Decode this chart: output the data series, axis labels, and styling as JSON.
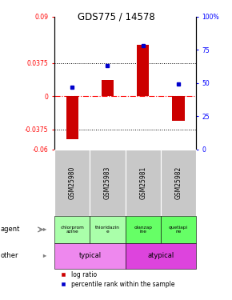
{
  "title": "GDS775 / 14578",
  "samples": [
    "GSM25980",
    "GSM25983",
    "GSM25981",
    "GSM25982"
  ],
  "log_ratios": [
    -0.048,
    0.018,
    0.058,
    -0.028
  ],
  "percentile_ranks": [
    47,
    63,
    78,
    49
  ],
  "ylim_left": [
    -0.06,
    0.09
  ],
  "yticks_left": [
    -0.06,
    -0.0375,
    0,
    0.0375,
    0.09
  ],
  "ytick_labels_left": [
    "-0.06",
    "-0.0375",
    "0",
    "0.0375",
    "0.09"
  ],
  "ylim_right": [
    0,
    100
  ],
  "yticks_right": [
    0,
    25,
    50,
    75,
    100
  ],
  "ytick_labels_right": [
    "0",
    "25",
    "50",
    "75",
    "100%"
  ],
  "hlines_dotted": [
    -0.0375,
    0.0375
  ],
  "bar_color": "#cc0000",
  "dot_color": "#0000cc",
  "agent_labels": [
    "chlorprom\nazine",
    "thioridazin\ne",
    "olanzap\nine",
    "quetiapi\nne"
  ],
  "agent_colors_typical": "#aaffaa",
  "agent_colors_atypical": "#66ff66",
  "other_typical_color": "#ee88ee",
  "other_atypical_color": "#dd44dd",
  "legend_items": [
    "log ratio",
    "percentile rank within the sample"
  ],
  "gsm_bg_color": "#c8c8c8",
  "background_color": "#ffffff"
}
